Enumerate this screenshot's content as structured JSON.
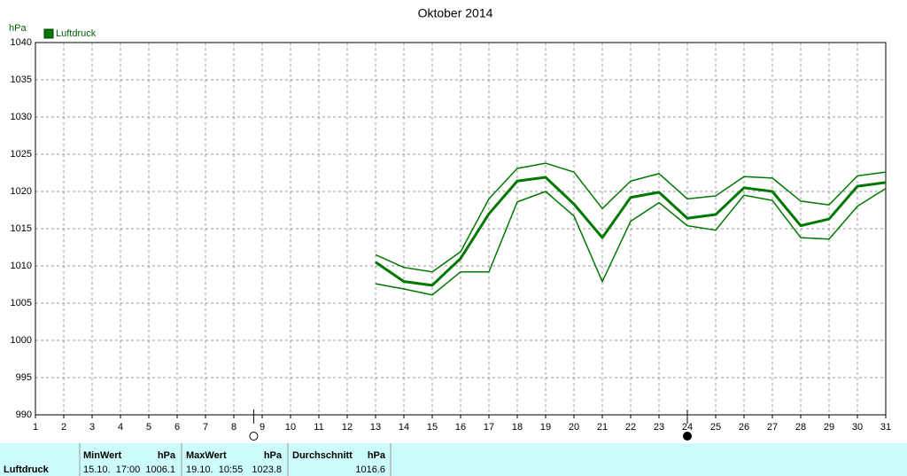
{
  "chart_data": {
    "type": "line",
    "title": "Oktober 2014",
    "y_label": "hPa",
    "x": [
      1,
      2,
      3,
      4,
      5,
      6,
      7,
      8,
      9,
      10,
      11,
      12,
      13,
      14,
      15,
      16,
      17,
      18,
      19,
      20,
      21,
      22,
      23,
      24,
      25,
      26,
      27,
      28,
      29,
      30,
      31
    ],
    "xlim": [
      1,
      31
    ],
    "xticks": [
      1,
      2,
      3,
      4,
      5,
      6,
      7,
      8,
      9,
      10,
      11,
      12,
      13,
      14,
      15,
      16,
      17,
      18,
      19,
      20,
      21,
      22,
      23,
      24,
      25,
      26,
      27,
      28,
      29,
      30,
      31
    ],
    "ylim": [
      990,
      1040
    ],
    "yticks": [
      990,
      995,
      1000,
      1005,
      1010,
      1015,
      1020,
      1025,
      1030,
      1035,
      1040
    ],
    "grid": true,
    "legend": "top-left",
    "series": [
      {
        "name": "Luftdruck",
        "color": "#007800",
        "values": [
          null,
          null,
          null,
          null,
          null,
          null,
          null,
          null,
          null,
          null,
          null,
          null,
          1010.5,
          1007.9,
          1007.4,
          1011.0,
          1017.0,
          1021.4,
          1021.9,
          1018.3,
          1013.8,
          1019.2,
          1019.9,
          1016.4,
          1016.9,
          1020.5,
          1020.0,
          1015.4,
          1016.3,
          1020.7,
          1021.2
        ],
        "max": [
          null,
          null,
          null,
          null,
          null,
          null,
          null,
          null,
          null,
          null,
          null,
          null,
          1011.5,
          1009.8,
          1009.2,
          1011.9,
          1019.0,
          1023.1,
          1023.8,
          1022.6,
          1017.7,
          1021.4,
          1022.4,
          1019.0,
          1019.4,
          1022.0,
          1021.8,
          1018.7,
          1018.2,
          1022.1,
          1022.6
        ],
        "min": [
          null,
          null,
          null,
          null,
          null,
          null,
          null,
          null,
          null,
          null,
          null,
          null,
          1007.6,
          1006.9,
          1006.1,
          1009.2,
          1009.2,
          1018.6,
          1020.0,
          1016.7,
          1007.9,
          1016.0,
          1018.5,
          1015.4,
          1014.8,
          1019.5,
          1018.8,
          1013.8,
          1013.6,
          1018.0,
          1020.4
        ]
      }
    ],
    "moon_phases": [
      {
        "x": 8.7,
        "phase": "full"
      },
      {
        "x": 24,
        "phase": "new"
      }
    ]
  },
  "summary": {
    "row_label": "Luftdruck",
    "min": {
      "header": "MinWert",
      "unit": "hPa",
      "time": "15.10.  17:00",
      "value": "1006.1"
    },
    "max": {
      "header": "MaxWert",
      "unit": "hPa",
      "time": "19.10.  10:55",
      "value": "1023.8"
    },
    "avg": {
      "header": "Durchschnitt",
      "unit": "hPa",
      "value": "1016.6"
    }
  }
}
